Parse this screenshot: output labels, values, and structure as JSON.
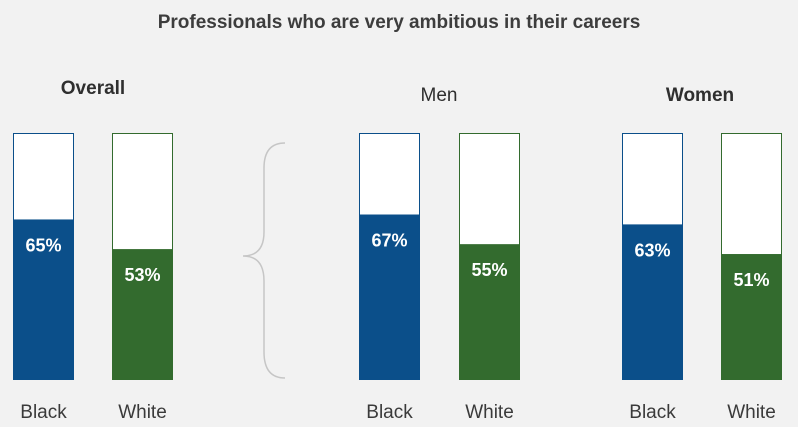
{
  "chart_data": {
    "type": "bar",
    "title": "Professionals who are very ambitious in their careers",
    "ylim": [
      0,
      100
    ],
    "grid": false,
    "categories": [
      "Black",
      "White"
    ],
    "colors": {
      "Black": "#0b4f8a",
      "White": "#336b2e"
    },
    "groups": [
      {
        "label": "Overall",
        "values": [
          65,
          53
        ],
        "data_labels": [
          "65%",
          "53%"
        ]
      },
      {
        "label": "Men",
        "values": [
          67,
          55
        ],
        "data_labels": [
          "67%",
          "55%"
        ]
      },
      {
        "label": "Women",
        "values": [
          63,
          51
        ],
        "data_labels": [
          "63%",
          "51%"
        ]
      }
    ]
  }
}
